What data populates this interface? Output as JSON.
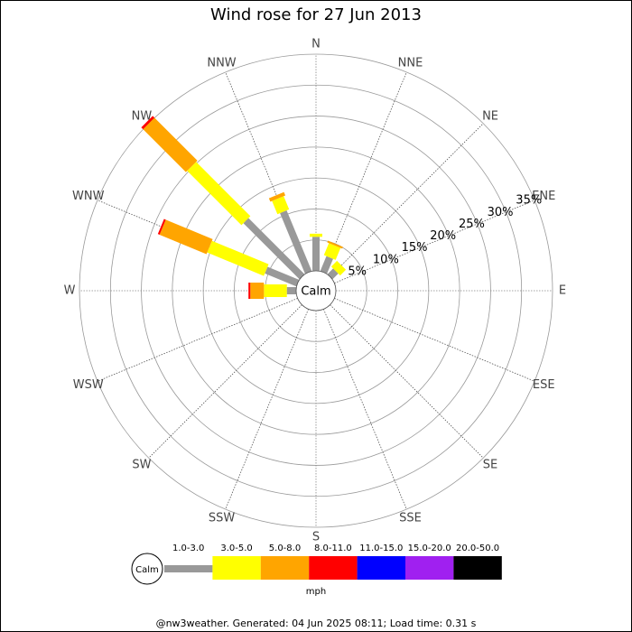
{
  "chart_data": {
    "type": "windrose",
    "title": "Wind rose for 27 Jun 2013",
    "categories": [
      "N",
      "NNE",
      "NE",
      "ENE",
      "E",
      "ESE",
      "SE",
      "SSE",
      "S",
      "SSW",
      "SW",
      "WSW",
      "W",
      "WNW",
      "NW",
      "NNW"
    ],
    "calm_label": "Calm",
    "unit": "mph",
    "rlim": [
      0,
      35
    ],
    "rticks": [
      {
        "value": 5,
        "label": "5%"
      },
      {
        "value": 10,
        "label": "10%"
      },
      {
        "value": 15,
        "label": "15%"
      },
      {
        "value": 20,
        "label": "20%"
      },
      {
        "value": 25,
        "label": "25%"
      },
      {
        "value": 30,
        "label": "30%"
      },
      {
        "value": 35,
        "label": "35%"
      }
    ],
    "series": [
      {
        "name": "1.0-3.0",
        "color": "#999999",
        "values": [
          5.5,
          2.6,
          1.3,
          0,
          0,
          0,
          0,
          0,
          0,
          0,
          0,
          0,
          1.5,
          5.5,
          12.8,
          10.6
        ]
      },
      {
        "name": "3.0-5.0",
        "color": "#ffff00",
        "values": [
          0.5,
          2.1,
          1.3,
          0,
          0,
          0,
          0,
          0,
          0,
          0,
          0,
          0,
          3.7,
          9.9,
          12.4,
          2.3
        ]
      },
      {
        "name": "5.0-8.0",
        "color": "#ffa500",
        "values": [
          0,
          0.3,
          0,
          0,
          0,
          0,
          0,
          0,
          0,
          0,
          0,
          0,
          2.2,
          8.2,
          9.8,
          0.6
        ]
      },
      {
        "name": "8.0-11.0",
        "color": "#ff0000",
        "values": [
          0,
          0,
          0,
          0,
          0,
          0,
          0,
          0,
          0,
          0,
          0,
          0,
          0.3,
          0.3,
          0.4,
          0
        ]
      },
      {
        "name": "11.0-15.0",
        "color": "#0000ff",
        "values": [
          0,
          0,
          0,
          0,
          0,
          0,
          0,
          0,
          0,
          0,
          0,
          0,
          0,
          0,
          0,
          0
        ]
      },
      {
        "name": "15.0-20.0",
        "color": "#a020f0",
        "values": [
          0,
          0,
          0,
          0,
          0,
          0,
          0,
          0,
          0,
          0,
          0,
          0,
          0,
          0,
          0,
          0
        ]
      },
      {
        "name": "20.0-50.0",
        "color": "#000000",
        "values": [
          0,
          0,
          0,
          0,
          0,
          0,
          0,
          0,
          0,
          0,
          0,
          0,
          0,
          0,
          0,
          0
        ]
      }
    ],
    "footer": "@nw3weather. Generated: 04 Jun 2025 08:11; Load time: 0.31 s"
  }
}
